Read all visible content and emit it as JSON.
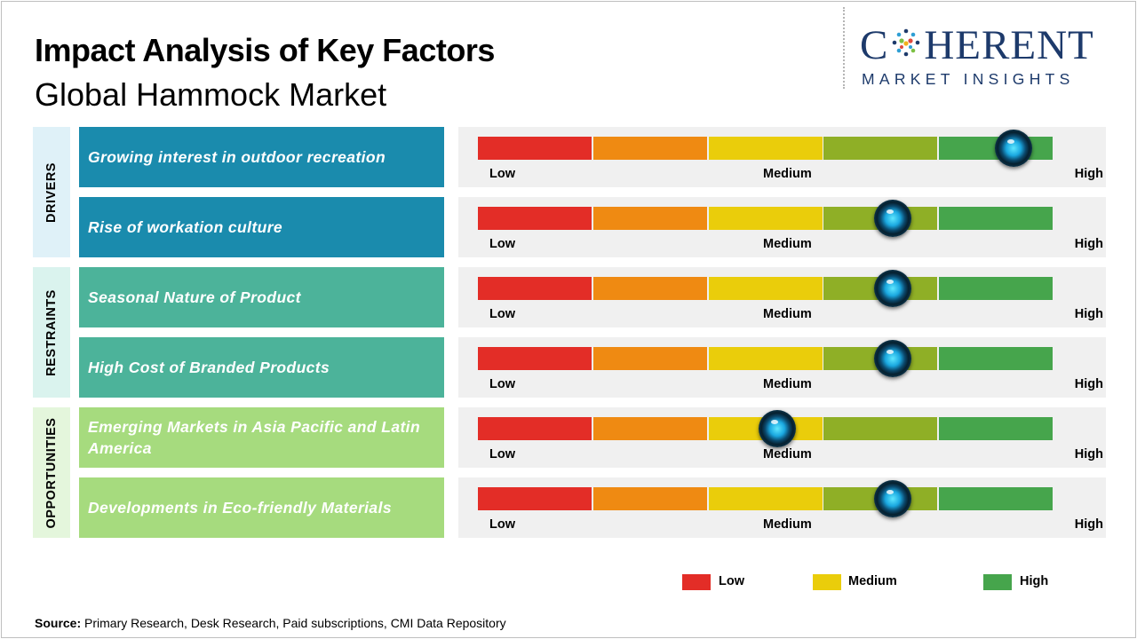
{
  "title": "Impact Analysis of Key Factors",
  "subtitle": "Global Hammock Market",
  "logo": {
    "main_pre": "C",
    "main_post": "HERENT",
    "sub": "MARKET INSIGHTS",
    "color": "#1d3a6b"
  },
  "colors": {
    "drivers_bg": "#dff1f8",
    "drivers_bar": "#1a8bad",
    "restraints_bg": "#daf3ee",
    "restraints_bar": "#4cb39a",
    "opportunities_bg": "#e4f6dc",
    "opportunities_bar": "#a6db7e",
    "low": "#e32d27",
    "medium": "#eacd0b",
    "high": "#46a54c"
  },
  "scale_labels": {
    "low": "Low",
    "medium": "Medium",
    "high": "High"
  },
  "categories": [
    {
      "label": "DRIVERS"
    },
    {
      "label": "RESTRAINTS"
    },
    {
      "label": "OPPORTUNITIES"
    }
  ],
  "chart_data": {
    "type": "table",
    "scale": [
      "Low",
      "Medium",
      "High"
    ],
    "value_range": [
      0,
      1
    ],
    "factors": [
      {
        "category": "DRIVERS",
        "label": "Growing interest in outdoor recreation",
        "impact": 0.93
      },
      {
        "category": "DRIVERS",
        "label": "Rise of workation culture",
        "impact": 0.72
      },
      {
        "category": "RESTRAINTS",
        "label": "Seasonal Nature of Product",
        "impact": 0.72
      },
      {
        "category": "RESTRAINTS",
        "label": "High Cost of Branded Products",
        "impact": 0.72
      },
      {
        "category": "OPPORTUNITIES",
        "label": "Emerging Markets in Asia Pacific and Latin America",
        "impact": 0.52
      },
      {
        "category": "OPPORTUNITIES",
        "label": "Developments in Eco-friendly Materials",
        "impact": 0.72
      }
    ],
    "legend": [
      "Low",
      "Medium",
      "High"
    ]
  },
  "source": {
    "label": "Source:",
    "text": " Primary Research, Desk Research, Paid subscriptions, CMI Data Repository"
  }
}
